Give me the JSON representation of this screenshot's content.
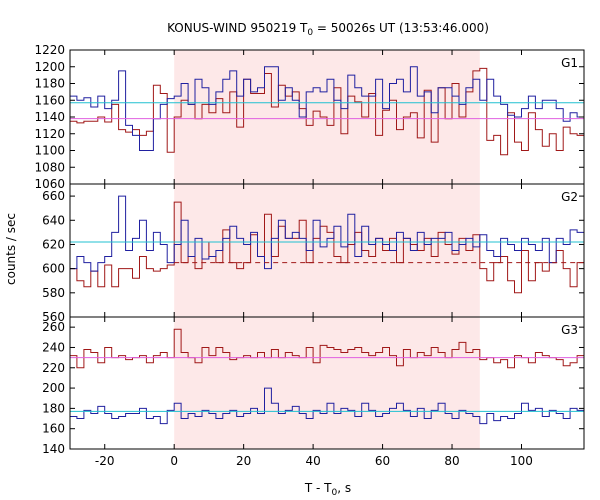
{
  "figure": {
    "title": "KONUS-WIND 950219 T",
    "title_sub": "0",
    "title_rest": " = 50026s UT (13:53:46.000)",
    "ylabel": "counts / sec",
    "xlabel": "T - T",
    "xlabel_sub": "0",
    "xlabel_rest": ", s"
  },
  "chart_data": [
    {
      "type": "line",
      "panel": "G1",
      "xlim": [
        -30,
        118
      ],
      "ylim": [
        1060,
        1220
      ],
      "yticks": [
        1060,
        1080,
        1100,
        1120,
        1140,
        1160,
        1180,
        1200,
        1220
      ],
      "xticks": [
        -20,
        0,
        20,
        40,
        60,
        80,
        100
      ],
      "highlight_interval": [
        0,
        88
      ],
      "x": [
        -30,
        -28,
        -26,
        -24,
        -22,
        -20,
        -18,
        -16,
        -14,
        -12,
        -10,
        -8,
        -6,
        -4,
        -2,
        0,
        2,
        4,
        6,
        8,
        10,
        12,
        14,
        16,
        18,
        20,
        22,
        24,
        26,
        28,
        30,
        32,
        34,
        36,
        38,
        40,
        42,
        44,
        46,
        48,
        50,
        52,
        54,
        56,
        58,
        60,
        62,
        64,
        66,
        68,
        70,
        72,
        74,
        76,
        78,
        80,
        82,
        84,
        86,
        88,
        90,
        92,
        94,
        96,
        98,
        100,
        102,
        104,
        106,
        108,
        110,
        112,
        114,
        116
      ],
      "series": [
        {
          "name": "",
          "color": "#a01818",
          "values": [
            1135,
            1133,
            1135,
            1135,
            1140,
            1134,
            1155,
            1125,
            1122,
            1125,
            1118,
            1123,
            1178,
            1168,
            1098,
            1140,
            1160,
            1155,
            1138,
            1155,
            1145,
            1162,
            1145,
            1170,
            1128,
            1185,
            1168,
            1168,
            1192,
            1152,
            1178,
            1165,
            1170,
            1150,
            1130,
            1147,
            1140,
            1130,
            1175,
            1120,
            1165,
            1158,
            1140,
            1168,
            1118,
            1148,
            1160,
            1125,
            1140,
            1145,
            1115,
            1172,
            1110,
            1175,
            1138,
            1180,
            1140,
            1170,
            1195,
            1198,
            1112,
            1118,
            1095,
            1145,
            1110,
            1100,
            1145,
            1125,
            1105,
            1120,
            1100,
            1128,
            1120,
            1118
          ]
        },
        {
          "name": "",
          "color": "#2020a0",
          "values": [
            1165,
            1160,
            1163,
            1152,
            1165,
            1150,
            1160,
            1195,
            1130,
            1118,
            1100,
            1100,
            1138,
            1155,
            1162,
            1165,
            1180,
            1155,
            1185,
            1175,
            1155,
            1170,
            1185,
            1195,
            1165,
            1185,
            1170,
            1175,
            1200,
            1200,
            1160,
            1175,
            1160,
            1140,
            1170,
            1175,
            1170,
            1185,
            1160,
            1150,
            1190,
            1175,
            1165,
            1165,
            1185,
            1150,
            1180,
            1185,
            1170,
            1200,
            1165,
            1170,
            1145,
            1175,
            1175,
            1165,
            1155,
            1175,
            1185,
            1160,
            1185,
            1165,
            1155,
            1142,
            1140,
            1150,
            1165,
            1150,
            1160,
            1160,
            1150,
            1135,
            1145,
            1140
          ]
        }
      ],
      "mean_lines": [
        {
          "color": "#20c0d0",
          "y": 1157,
          "style": "solid"
        },
        {
          "color": "#e060e0",
          "y": 1138,
          "style": "solid"
        }
      ],
      "label": "G1"
    },
    {
      "type": "line",
      "panel": "G2",
      "xlim": [
        -30,
        118
      ],
      "ylim": [
        560,
        670
      ],
      "yticks": [
        560,
        580,
        600,
        620,
        640,
        660
      ],
      "xticks": [
        -20,
        0,
        20,
        40,
        60,
        80,
        100
      ],
      "highlight_interval": [
        0,
        88
      ],
      "x": [
        -30,
        -28,
        -26,
        -24,
        -22,
        -20,
        -18,
        -16,
        -14,
        -12,
        -10,
        -8,
        -6,
        -4,
        -2,
        0,
        2,
        4,
        6,
        8,
        10,
        12,
        14,
        16,
        18,
        20,
        22,
        24,
        26,
        28,
        30,
        32,
        34,
        36,
        38,
        40,
        42,
        44,
        46,
        48,
        50,
        52,
        54,
        56,
        58,
        60,
        62,
        64,
        66,
        68,
        70,
        72,
        74,
        76,
        78,
        80,
        82,
        84,
        86,
        88,
        90,
        92,
        94,
        96,
        98,
        100,
        102,
        104,
        106,
        108,
        110,
        112,
        114,
        116
      ],
      "series": [
        {
          "name": "",
          "color": "#a01818",
          "values": [
            600,
            590,
            585,
            598,
            585,
            603,
            585,
            600,
            600,
            592,
            610,
            600,
            598,
            600,
            603,
            655,
            605,
            610,
            600,
            622,
            610,
            605,
            632,
            605,
            600,
            605,
            628,
            610,
            645,
            610,
            635,
            625,
            625,
            640,
            605,
            625,
            635,
            630,
            610,
            605,
            620,
            630,
            615,
            610,
            625,
            615,
            625,
            605,
            625,
            620,
            615,
            625,
            610,
            630,
            620,
            612,
            625,
            615,
            628,
            600,
            590,
            605,
            610,
            590,
            580,
            615,
            590,
            605,
            598,
            605,
            615,
            600,
            585,
            605
          ]
        },
        {
          "name": "",
          "color": "#2020a0",
          "values": [
            600,
            610,
            605,
            598,
            605,
            610,
            630,
            660,
            615,
            625,
            640,
            615,
            630,
            620,
            605,
            620,
            640,
            610,
            625,
            608,
            610,
            615,
            625,
            635,
            625,
            620,
            630,
            610,
            600,
            625,
            640,
            625,
            630,
            625,
            615,
            640,
            618,
            625,
            635,
            618,
            645,
            610,
            635,
            620,
            625,
            620,
            615,
            630,
            625,
            615,
            630,
            620,
            625,
            625,
            630,
            615,
            620,
            625,
            618,
            628,
            615,
            610,
            625,
            620,
            615,
            625,
            620,
            615,
            625,
            605,
            625,
            620,
            632,
            630
          ]
        }
      ],
      "mean_lines": [
        {
          "color": "#20c0d0",
          "y": 622,
          "style": "solid"
        },
        {
          "color": "#a01818",
          "y": 605,
          "style": "dashed"
        }
      ],
      "label": "G2"
    },
    {
      "type": "line",
      "panel": "G3",
      "xlim": [
        -30,
        118
      ],
      "ylim": [
        140,
        270
      ],
      "yticks": [
        140,
        160,
        180,
        200,
        220,
        240,
        260
      ],
      "xticks": [
        -20,
        0,
        20,
        40,
        60,
        80,
        100
      ],
      "highlight_interval": [
        0,
        88
      ],
      "x": [
        -30,
        -28,
        -26,
        -24,
        -22,
        -20,
        -18,
        -16,
        -14,
        -12,
        -10,
        -8,
        -6,
        -4,
        -2,
        0,
        2,
        4,
        6,
        8,
        10,
        12,
        14,
        16,
        18,
        20,
        22,
        24,
        26,
        28,
        30,
        32,
        34,
        36,
        38,
        40,
        42,
        44,
        46,
        48,
        50,
        52,
        54,
        56,
        58,
        60,
        62,
        64,
        66,
        68,
        70,
        72,
        74,
        76,
        78,
        80,
        82,
        84,
        86,
        88,
        90,
        92,
        94,
        96,
        98,
        100,
        102,
        104,
        106,
        108,
        110,
        112,
        114,
        116
      ],
      "series": [
        {
          "name": "",
          "color": "#a01818",
          "values": [
            232,
            220,
            238,
            235,
            225,
            240,
            230,
            232,
            228,
            230,
            232,
            225,
            232,
            235,
            230,
            258,
            235,
            230,
            225,
            240,
            232,
            240,
            235,
            228,
            230,
            232,
            230,
            235,
            230,
            238,
            230,
            235,
            232,
            230,
            240,
            225,
            242,
            240,
            238,
            235,
            238,
            240,
            235,
            232,
            235,
            240,
            232,
            222,
            238,
            230,
            235,
            232,
            240,
            235,
            230,
            238,
            245,
            235,
            238,
            228,
            230,
            225,
            228,
            220,
            232,
            230,
            225,
            235,
            232,
            230,
            228,
            222,
            225,
            232
          ]
        },
        {
          "name": "",
          "color": "#2020a0",
          "values": [
            172,
            170,
            178,
            175,
            182,
            175,
            170,
            172,
            175,
            175,
            180,
            170,
            172,
            165,
            178,
            185,
            170,
            175,
            172,
            178,
            175,
            170,
            175,
            178,
            172,
            175,
            180,
            175,
            200,
            185,
            175,
            178,
            182,
            175,
            170,
            178,
            175,
            185,
            175,
            180,
            178,
            172,
            185,
            178,
            172,
            175,
            180,
            185,
            178,
            172,
            180,
            170,
            178,
            185,
            175,
            170,
            178,
            175,
            172,
            165,
            175,
            168,
            172,
            170,
            175,
            185,
            178,
            180,
            172,
            178,
            175,
            170,
            180,
            178
          ]
        }
      ],
      "mean_lines": [
        {
          "color": "#e060e0",
          "y": 230,
          "style": "solid"
        },
        {
          "color": "#20c0d0",
          "y": 177,
          "style": "solid"
        }
      ],
      "label": "G3"
    }
  ]
}
